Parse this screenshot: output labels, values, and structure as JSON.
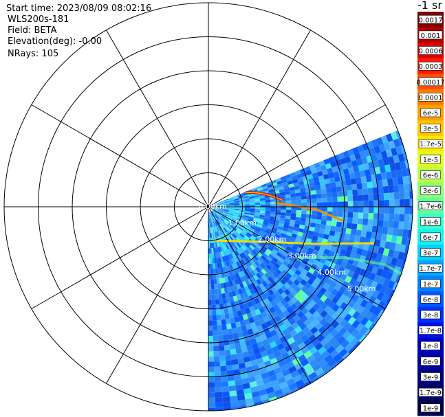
{
  "header": {
    "start_time": "Start time: 2023/08/09 08:02:16",
    "instrument": "WLS200s-181",
    "field": "Field: BETA",
    "elevation": "Elevation(deg): -0.00",
    "nrays": "NRays: 105"
  },
  "chart_data": {
    "type": "heatmap",
    "projection": "polar-ppi",
    "azimuth_range_deg": [
      68,
      180
    ],
    "range_rings_km": [
      0,
      1,
      2,
      3,
      4,
      5
    ],
    "range_ring_labels": [
      "0.00km",
      "1.00km",
      "2.00km",
      "3.00km",
      "4.00km",
      "5.00km"
    ],
    "max_range_km": 6,
    "spoke_step_deg": 30,
    "colorbar": {
      "title": "-1 sr",
      "labels": [
        "0.0017",
        "0.001",
        "0.0006",
        "0.0003",
        "0.00017",
        "0.0001",
        "6e-5",
        "3e-5",
        "1.7e-5",
        "1e-5",
        "6e-6",
        "3e-6",
        "1.7e-6",
        "1e-6",
        "6e-7",
        "3e-7",
        "1.7e-7",
        "1e-7",
        "6e-8",
        "3e-8",
        "1.7e-8",
        "1e-8",
        "6e-9",
        "3e-9",
        "1.7e-9",
        "1e-9"
      ],
      "colors": [
        "#800000",
        "#b00000",
        "#dd0000",
        "#ff1a00",
        "#ff5000",
        "#ff7a00",
        "#ffa000",
        "#ffc400",
        "#fde800",
        "#e2ff1d",
        "#b8ff46",
        "#8cff72",
        "#60ff9e",
        "#38ffc8",
        "#14f2f0",
        "#00d0ff",
        "#00a8ff",
        "#0080ff",
        "#0058ff",
        "#0030ff",
        "#0010e8",
        "#0000c4",
        "#00009e",
        "#000080",
        "#000066",
        "#00004c"
      ]
    }
  }
}
